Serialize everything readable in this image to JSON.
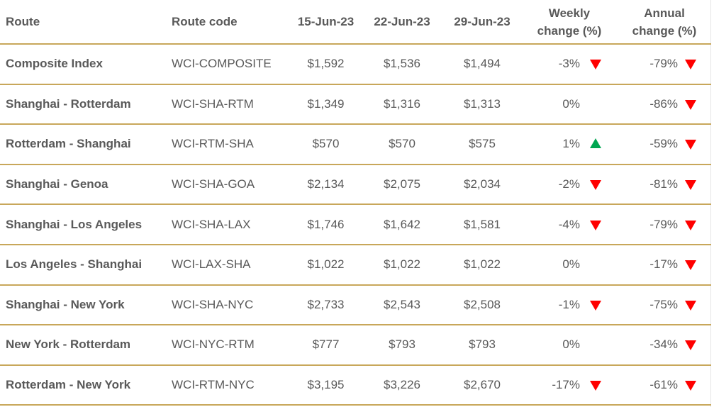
{
  "chart_data": {
    "type": "table",
    "colors": {
      "border": "#c8a75a",
      "text": "#595959",
      "down_arrow": "#ff0000",
      "up_arrow": "#00a651"
    },
    "columns": [
      "Route",
      "Route code",
      "15-Jun-23",
      "22-Jun-23",
      "29-Jun-23",
      "Weekly change (%)",
      "Annual change (%)"
    ],
    "header": {
      "route": "Route",
      "code": "Route code",
      "d1": "15-Jun-23",
      "d2": "22-Jun-23",
      "d3": "29-Jun-23",
      "weekly_l1": "Weekly",
      "weekly_l2": "change (%)",
      "annual_l1": "Annual",
      "annual_l2": "change (%)"
    },
    "rows": [
      {
        "route": "Composite Index",
        "code": "WCI-COMPOSITE",
        "d1": "$1,592",
        "d2": "$1,536",
        "d3": "$1,494",
        "weekly": "-3%",
        "weekly_arrow": "down",
        "annual": "-79%",
        "annual_arrow": "down"
      },
      {
        "route": "Shanghai - Rotterdam",
        "code": "WCI-SHA-RTM",
        "d1": "$1,349",
        "d2": "$1,316",
        "d3": "$1,313",
        "weekly": "0%",
        "weekly_arrow": "none",
        "annual": "-86%",
        "annual_arrow": "down"
      },
      {
        "route": "Rotterdam - Shanghai",
        "code": "WCI-RTM-SHA",
        "d1": "$570",
        "d2": "$570",
        "d3": "$575",
        "weekly": "1%",
        "weekly_arrow": "up",
        "annual": "-59%",
        "annual_arrow": "down"
      },
      {
        "route": "Shanghai - Genoa",
        "code": "WCI-SHA-GOA",
        "d1": "$2,134",
        "d2": "$2,075",
        "d3": "$2,034",
        "weekly": "-2%",
        "weekly_arrow": "down",
        "annual": "-81%",
        "annual_arrow": "down"
      },
      {
        "route": "Shanghai - Los Angeles",
        "code": "WCI-SHA-LAX",
        "d1": "$1,746",
        "d2": "$1,642",
        "d3": "$1,581",
        "weekly": "-4%",
        "weekly_arrow": "down",
        "annual": "-79%",
        "annual_arrow": "down"
      },
      {
        "route": "Los Angeles - Shanghai",
        "code": "WCI-LAX-SHA",
        "d1": "$1,022",
        "d2": "$1,022",
        "d3": "$1,022",
        "weekly": "0%",
        "weekly_arrow": "none",
        "annual": "-17%",
        "annual_arrow": "down"
      },
      {
        "route": "Shanghai - New York",
        "code": "WCI-SHA-NYC",
        "d1": "$2,733",
        "d2": "$2,543",
        "d3": "$2,508",
        "weekly": "-1%",
        "weekly_arrow": "down",
        "annual": "-75%",
        "annual_arrow": "down"
      },
      {
        "route": "New York - Rotterdam",
        "code": "WCI-NYC-RTM",
        "d1": "$777",
        "d2": "$793",
        "d3": "$793",
        "weekly": "0%",
        "weekly_arrow": "none",
        "annual": "-34%",
        "annual_arrow": "down"
      },
      {
        "route": "Rotterdam - New York",
        "code": "WCI-RTM-NYC",
        "d1": "$3,195",
        "d2": "$3,226",
        "d3": "$2,670",
        "weekly": "-17%",
        "weekly_arrow": "down",
        "annual": "-61%",
        "annual_arrow": "down"
      }
    ]
  }
}
